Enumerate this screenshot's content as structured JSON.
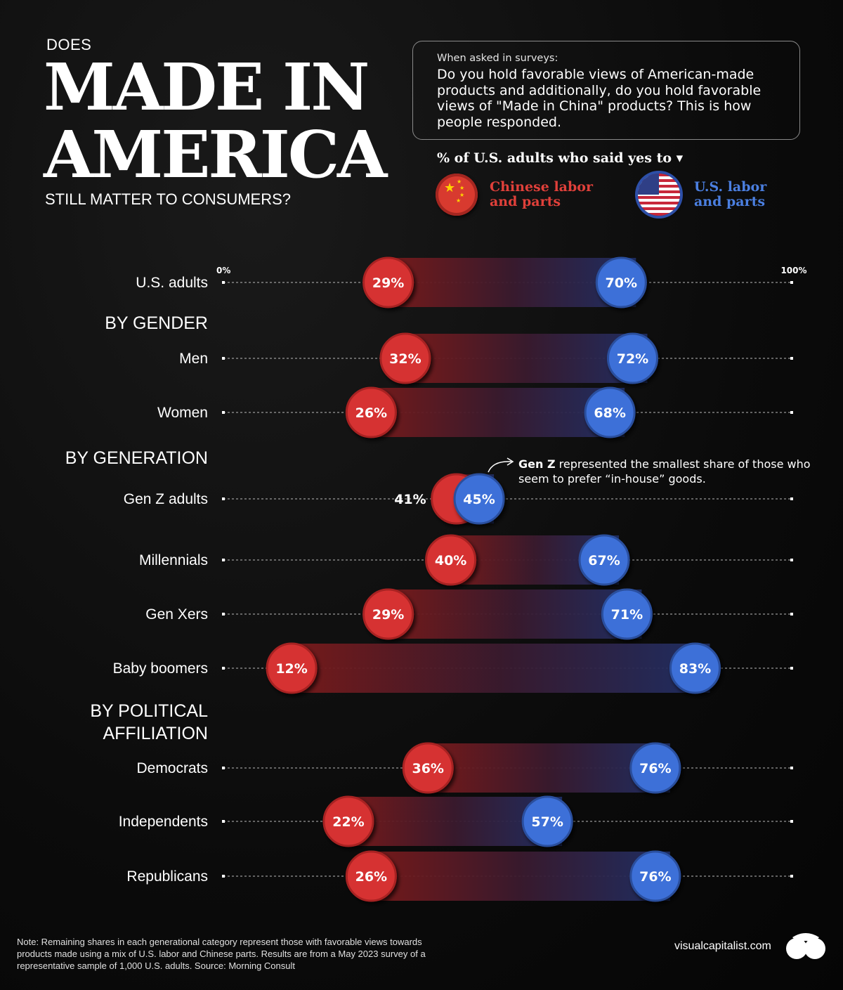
{
  "header": {
    "pre_title": "DOES",
    "title_line1": "MADE IN",
    "title_line2": "AMERICA",
    "subtitle": "STILL MATTER TO CONSUMERS?"
  },
  "question_box": {
    "lead": "When asked in surveys:",
    "question": "Do you hold favorable views of American-made products and additionally, do you hold favorable views of \"Made in China\" products? This is how people responded."
  },
  "legend": {
    "title": "% of U.S. adults who said yes to ▾",
    "china_label": "Chinese labor and parts",
    "us_label": "U.S. labor and parts",
    "china_icon": "china-flag-icon",
    "us_icon": "us-flag-icon"
  },
  "annotation": {
    "bold": "Gen Z",
    "text": " represented the smallest share of those who seem to prefer “in-house” goods."
  },
  "footer": {
    "note": "Note: Remaining shares in each generational category represent those with favorable views towards products made using a mix of U.S. labor and Chinese parts. Results are from a May 2023 survey of a representative sample of 1,000 U.S. adults. Source: Morning Consult",
    "brand": "visualcapitalist.com"
  },
  "colors": {
    "china": "#d63332",
    "us": "#3d6fd8",
    "background": "#0b0b0b"
  },
  "chart_data": {
    "type": "dumbbell",
    "xlim": [
      0,
      100
    ],
    "axis_labels": [
      "0%",
      "100%"
    ],
    "series": [
      {
        "name": "Chinese labor and parts",
        "color": "#d63332"
      },
      {
        "name": "U.S. labor and parts",
        "color": "#3d6fd8"
      }
    ],
    "groups": [
      {
        "header": "",
        "rows": [
          {
            "label": "U.S. adults",
            "china": 29,
            "us": 70
          }
        ]
      },
      {
        "header": "BY GENDER",
        "rows": [
          {
            "label": "Men",
            "china": 32,
            "us": 72
          },
          {
            "label": "Women",
            "china": 26,
            "us": 68
          }
        ]
      },
      {
        "header": "BY GENERATION",
        "rows": [
          {
            "label": "Gen Z adults",
            "china": 41,
            "us": 45
          },
          {
            "label": "Millennials",
            "china": 40,
            "us": 67
          },
          {
            "label": "Gen Xers",
            "china": 29,
            "us": 71
          },
          {
            "label": "Baby boomers",
            "china": 12,
            "us": 83
          }
        ]
      },
      {
        "header": "BY POLITICAL AFFILIATION",
        "rows": [
          {
            "label": "Democrats",
            "china": 36,
            "us": 76
          },
          {
            "label": "Independents",
            "china": 22,
            "us": 57
          },
          {
            "label": "Republicans",
            "china": 26,
            "us": 76
          }
        ]
      }
    ]
  }
}
